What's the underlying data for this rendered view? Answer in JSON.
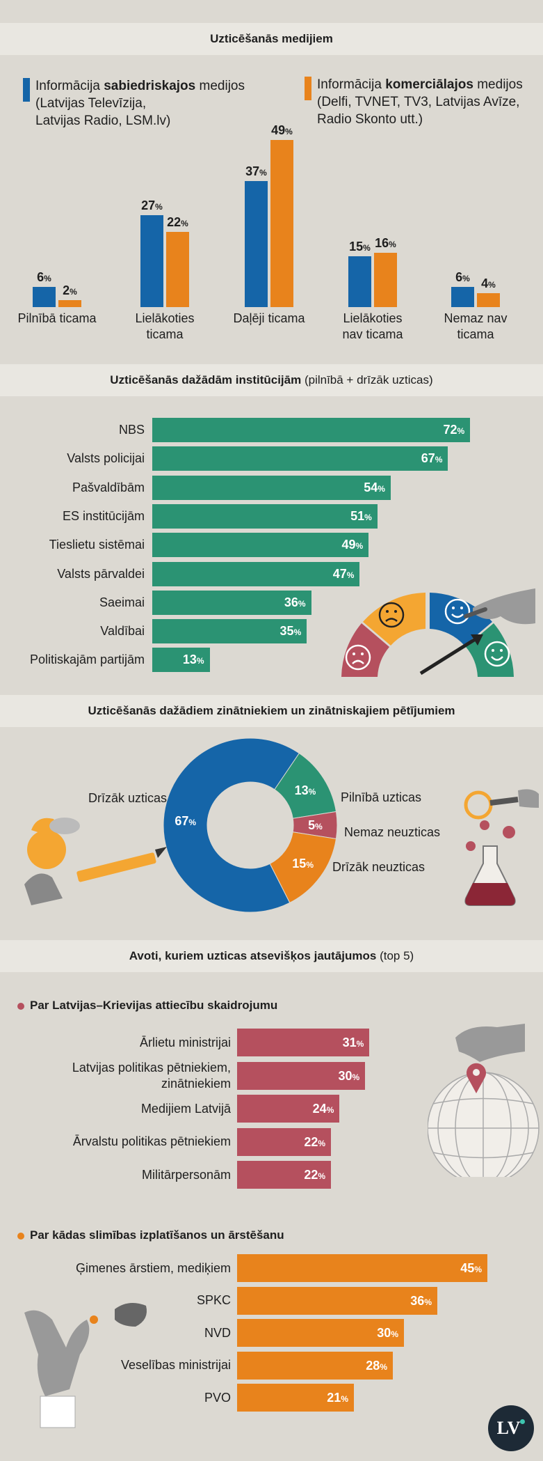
{
  "colors": {
    "public": "#1565a8",
    "commercial": "#e8831c",
    "institutions": "#2b9373",
    "russia": "#b5505e",
    "disease": "#e8831c",
    "donut_blue": "#1565a8",
    "donut_green": "#2b9373",
    "donut_red": "#b5505e",
    "donut_orange": "#e8831c"
  },
  "section1": {
    "title_bold": "Uzticēšanās medijiem",
    "legend_public": {
      "line1_pre": "Informācija ",
      "line1_bold": "sabiedriskajos",
      "line1_post": " medijos",
      "line2": "(Latvijas Televīzija,",
      "line3": "Latvijas Radio, LSM.lv)"
    },
    "legend_commercial": {
      "line1_pre": "Informācija ",
      "line1_bold": "komerciālajos",
      "line1_post": " medijos",
      "line2": "(Delfi, TVNET, TV3, Latvijas Avīze,",
      "line3": "Radio Skonto utt.)"
    }
  },
  "section2": {
    "title_bold": "Uzticēšanās dažādām institūcijām",
    "title_rest": " (pilnībā + drīzāk uzticas)"
  },
  "section3": {
    "title_bold": "Uzticēšanās dažādiem zinātniekiem un zinātniskajiem pētījumiem"
  },
  "section4": {
    "title_bold": "Avoti, kuriem uzticas atsevišķos jautājumos",
    "title_rest": " (top 5)",
    "sub1": "Par Latvijas–Krievijas attiecību skaidrojumu",
    "sub2": "Par kādas slimības izplatīšanos un ārstēšanu"
  },
  "logo": "LV",
  "chart_data": [
    {
      "type": "bar",
      "title": "Uzticēšanās medijiem",
      "categories": [
        "Pilnībā ticama",
        "Lielākoties ticama",
        "Daļēji ticama",
        "Lielākoties nav ticama",
        "Nemaz nav ticama"
      ],
      "category_lines": [
        [
          "Pilnībā ticama"
        ],
        [
          "Lielākoties",
          "ticama"
        ],
        [
          "Daļēji ticama"
        ],
        [
          "Lielākoties",
          "nav ticama"
        ],
        [
          "Nemaz nav",
          "ticama"
        ]
      ],
      "series": [
        {
          "name": "Informācija sabiedriskajos medijos",
          "values": [
            6,
            27,
            37,
            15,
            6
          ]
        },
        {
          "name": "Informācija komerciālajos medijos",
          "values": [
            2,
            22,
            49,
            16,
            4
          ]
        }
      ],
      "unit": "%",
      "ylim": [
        0,
        50
      ]
    },
    {
      "type": "bar",
      "orientation": "horizontal",
      "title": "Uzticēšanās dažādām institūcijām (pilnībā + drīzāk uzticas)",
      "categories": [
        "NBS",
        "Valsts policijai",
        "Pašvaldībām",
        "ES institūcijām",
        "Tieslietu sistēmai",
        "Valsts pārvaldei",
        "Saeimai",
        "Valdībai",
        "Politiskajām partijām"
      ],
      "values": [
        72,
        67,
        54,
        51,
        49,
        47,
        36,
        35,
        13
      ],
      "unit": "%"
    },
    {
      "type": "pie",
      "style": "donut",
      "title": "Uzticēšanās dažādiem zinātniekiem un zinātniskajiem pētījumiem",
      "labels": [
        "Drīzāk uzticas",
        "Pilnībā uzticas",
        "Nemaz neuzticas",
        "Drīzāk neuzticas"
      ],
      "values": [
        67,
        13,
        5,
        15
      ],
      "unit": "%"
    },
    {
      "type": "bar",
      "orientation": "horizontal",
      "title": "Par Latvijas–Krievijas attiecību skaidrojumu",
      "category_lines": [
        [
          "Ārlietu ministrijai"
        ],
        [
          "Latvijas politikas pētniekiem,",
          "zinātniekiem"
        ],
        [
          "Medijiem Latvijā"
        ],
        [
          "Ārvalstu politikas pētniekiem"
        ],
        [
          "Militārpersonām"
        ]
      ],
      "categories": [
        "Ārlietu ministrijai",
        "Latvijas politikas pētniekiem, zinātniekiem",
        "Medijiem Latvijā",
        "Ārvalstu politikas pētniekiem",
        "Militārpersonām"
      ],
      "values": [
        31,
        30,
        24,
        22,
        22
      ],
      "unit": "%"
    },
    {
      "type": "bar",
      "orientation": "horizontal",
      "title": "Par kādas slimības izplatīšanos un ārstēšanu",
      "categories": [
        "Ģimenes ārstiem, mediķiem",
        "SPKC",
        "NVD",
        "Veselības ministrijai",
        "PVO"
      ],
      "values": [
        45,
        36,
        30,
        28,
        21
      ],
      "unit": "%"
    }
  ]
}
